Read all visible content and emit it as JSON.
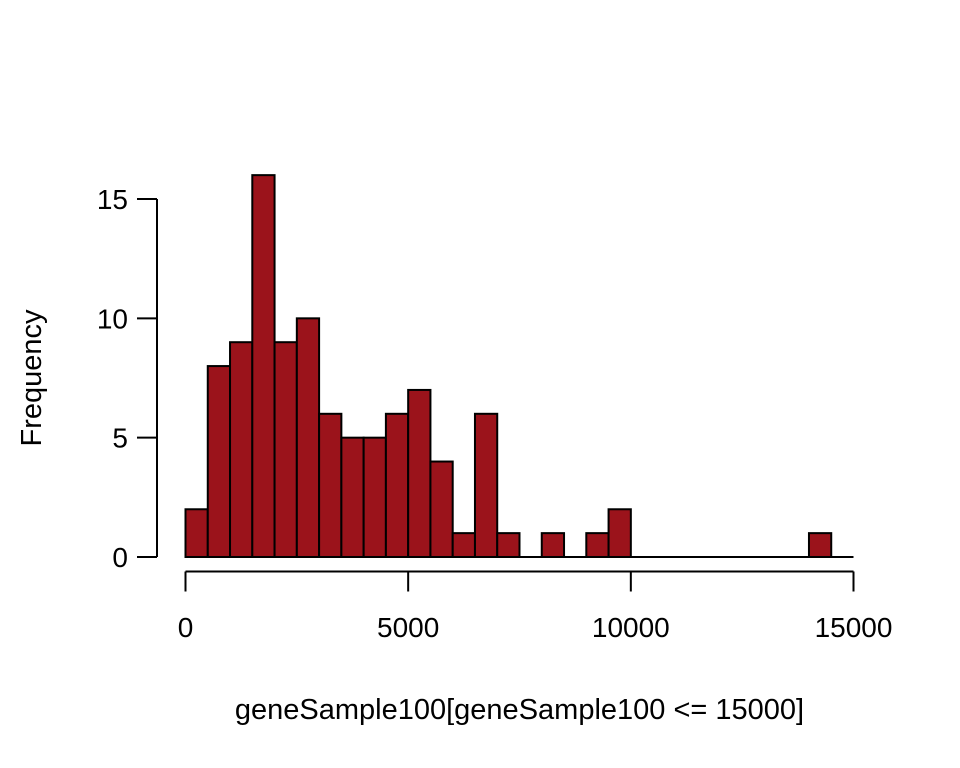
{
  "chart_data": {
    "type": "bar",
    "subtype": "histogram",
    "title": "",
    "xlabel": "geneSample100[geneSample100 <= 15000]",
    "ylabel": "Frequency",
    "bin_width": 500,
    "bin_starts": [
      0,
      500,
      1000,
      1500,
      2000,
      2500,
      3000,
      3500,
      4000,
      4500,
      5000,
      5500,
      6000,
      6500,
      7000,
      7500,
      8000,
      8500,
      9000,
      9500,
      10000,
      10500,
      11000,
      11500,
      12000,
      12500,
      13000,
      13500,
      14000,
      14500
    ],
    "counts": [
      2,
      8,
      9,
      16,
      9,
      10,
      6,
      5,
      5,
      6,
      7,
      4,
      1,
      6,
      1,
      0,
      1,
      0,
      1,
      2,
      0,
      0,
      0,
      0,
      0,
      0,
      0,
      0,
      1,
      0
    ],
    "total_count": 100,
    "x_ticks": [
      0,
      5000,
      10000,
      15000
    ],
    "y_ticks": [
      0,
      5,
      10,
      15
    ],
    "xlim": [
      0,
      15000
    ],
    "ylim": [
      0,
      15
    ],
    "grid": false,
    "legend": null,
    "bar_fill": "#9B131B",
    "bar_stroke": "#000000",
    "axis_color": "#000000",
    "background": "#FFFFFF"
  }
}
